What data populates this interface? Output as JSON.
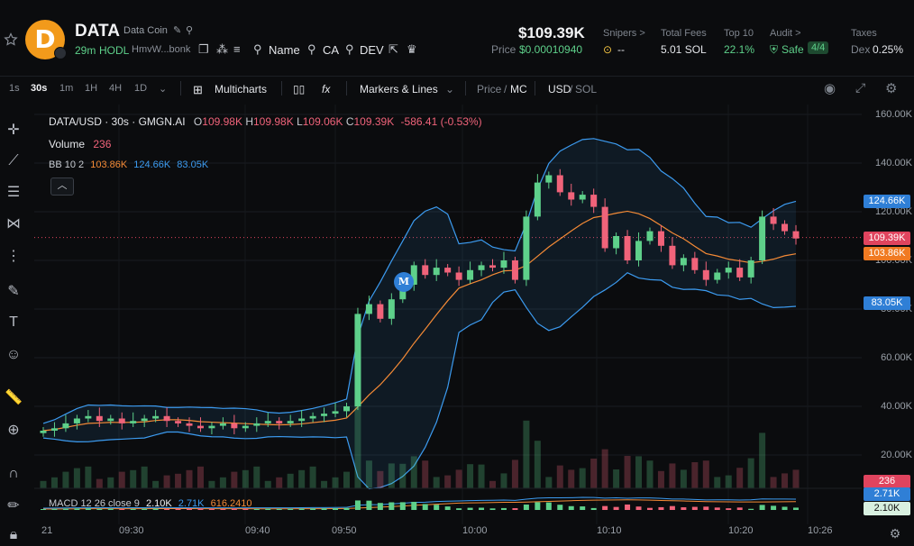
{
  "token": {
    "symbol": "DATA",
    "name": "Data Coin",
    "logo_letter": "D",
    "age": "29m",
    "hodl": "HODL",
    "address": "HmvW...bonk",
    "links": {
      "name": "Name",
      "ca": "CA",
      "dev": "DEV"
    }
  },
  "price": {
    "headline": "$109.39K",
    "label": "Price",
    "value": "$0.00010940"
  },
  "stats": [
    {
      "label": "Snipers >",
      "value": "--"
    },
    {
      "label": "Total Fees",
      "value": "5.01 SOL"
    },
    {
      "label": "Top 10",
      "value": "22.1%"
    },
    {
      "label": "Audit >",
      "value": "Safe",
      "badge": "4/4"
    },
    {
      "label": "Taxes",
      "value_prefix": "Dex",
      "value": "0.25%"
    }
  ],
  "toolbar": {
    "timeframes": [
      "1s",
      "30s",
      "1m",
      "1H",
      "4H",
      "1D"
    ],
    "active_timeframe": "30s",
    "multicharts": "Multicharts",
    "markers": "Markers & Lines",
    "price_mc": {
      "a": "Price",
      "sep": "/",
      "b": "MC"
    },
    "currency": {
      "a": "USD",
      "sep": "/",
      "b": "SOL"
    }
  },
  "legend": {
    "pair": "DATA/USD · 30s · GMGN.AI",
    "o_label": "O",
    "o": "109.98K",
    "h_label": "H",
    "h": "109.98K",
    "l_label": "L",
    "l": "109.06K",
    "c_label": "C",
    "c": "109.39K",
    "change": "-586.41 (-0.53%)",
    "volume_label": "Volume",
    "volume": "236",
    "bb_label": "BB 10 2",
    "bb_mid": "103.86K",
    "bb_up": "124.66K",
    "bb_low": "83.05K",
    "macd_label": "MACD 12 26 close 9",
    "macd_a": "2.10K",
    "macd_b": "2.71K",
    "macd_c": "616.2410"
  },
  "y_axis": [
    "160.00K",
    "140.00K",
    "120.00K",
    "100.00K",
    "80.00K",
    "60.00K",
    "40.00K",
    "20.00K"
  ],
  "y_badges": {
    "bb_up": "124.66K",
    "last": "109.39K",
    "bb_mid": "103.86K",
    "bb_low": "83.05K",
    "volume": "236",
    "macd_b": "2.71K",
    "macd_a": "2.10K"
  },
  "x_axis": [
    "21",
    "09:30",
    "09:40",
    "09:50",
    "10:00",
    "10:10",
    "10:20",
    "10:26"
  ],
  "marker": "M",
  "colors": {
    "up": "#5ed08a",
    "down": "#f0637a",
    "bb": "#3c9bf0",
    "mid": "#f48a36",
    "bg": "#0b0c0e"
  },
  "chart_data": {
    "type": "candlestick",
    "ylim": [
      0,
      165000
    ],
    "price_series_approx": [
      30,
      31,
      33,
      35,
      36,
      34,
      35,
      33,
      34,
      35,
      36,
      34,
      33,
      32,
      31,
      32,
      33,
      31,
      32,
      33,
      34,
      33,
      34,
      35,
      36,
      37,
      38,
      40,
      78,
      82,
      76,
      84,
      90,
      98,
      94,
      97,
      95,
      92,
      96,
      98,
      97,
      100,
      92,
      118,
      132,
      135,
      128,
      125,
      127,
      122,
      105,
      110,
      100,
      108,
      112,
      106,
      98,
      101,
      96,
      92,
      95,
      97,
      93,
      100,
      118,
      115,
      112,
      109
    ]
  }
}
